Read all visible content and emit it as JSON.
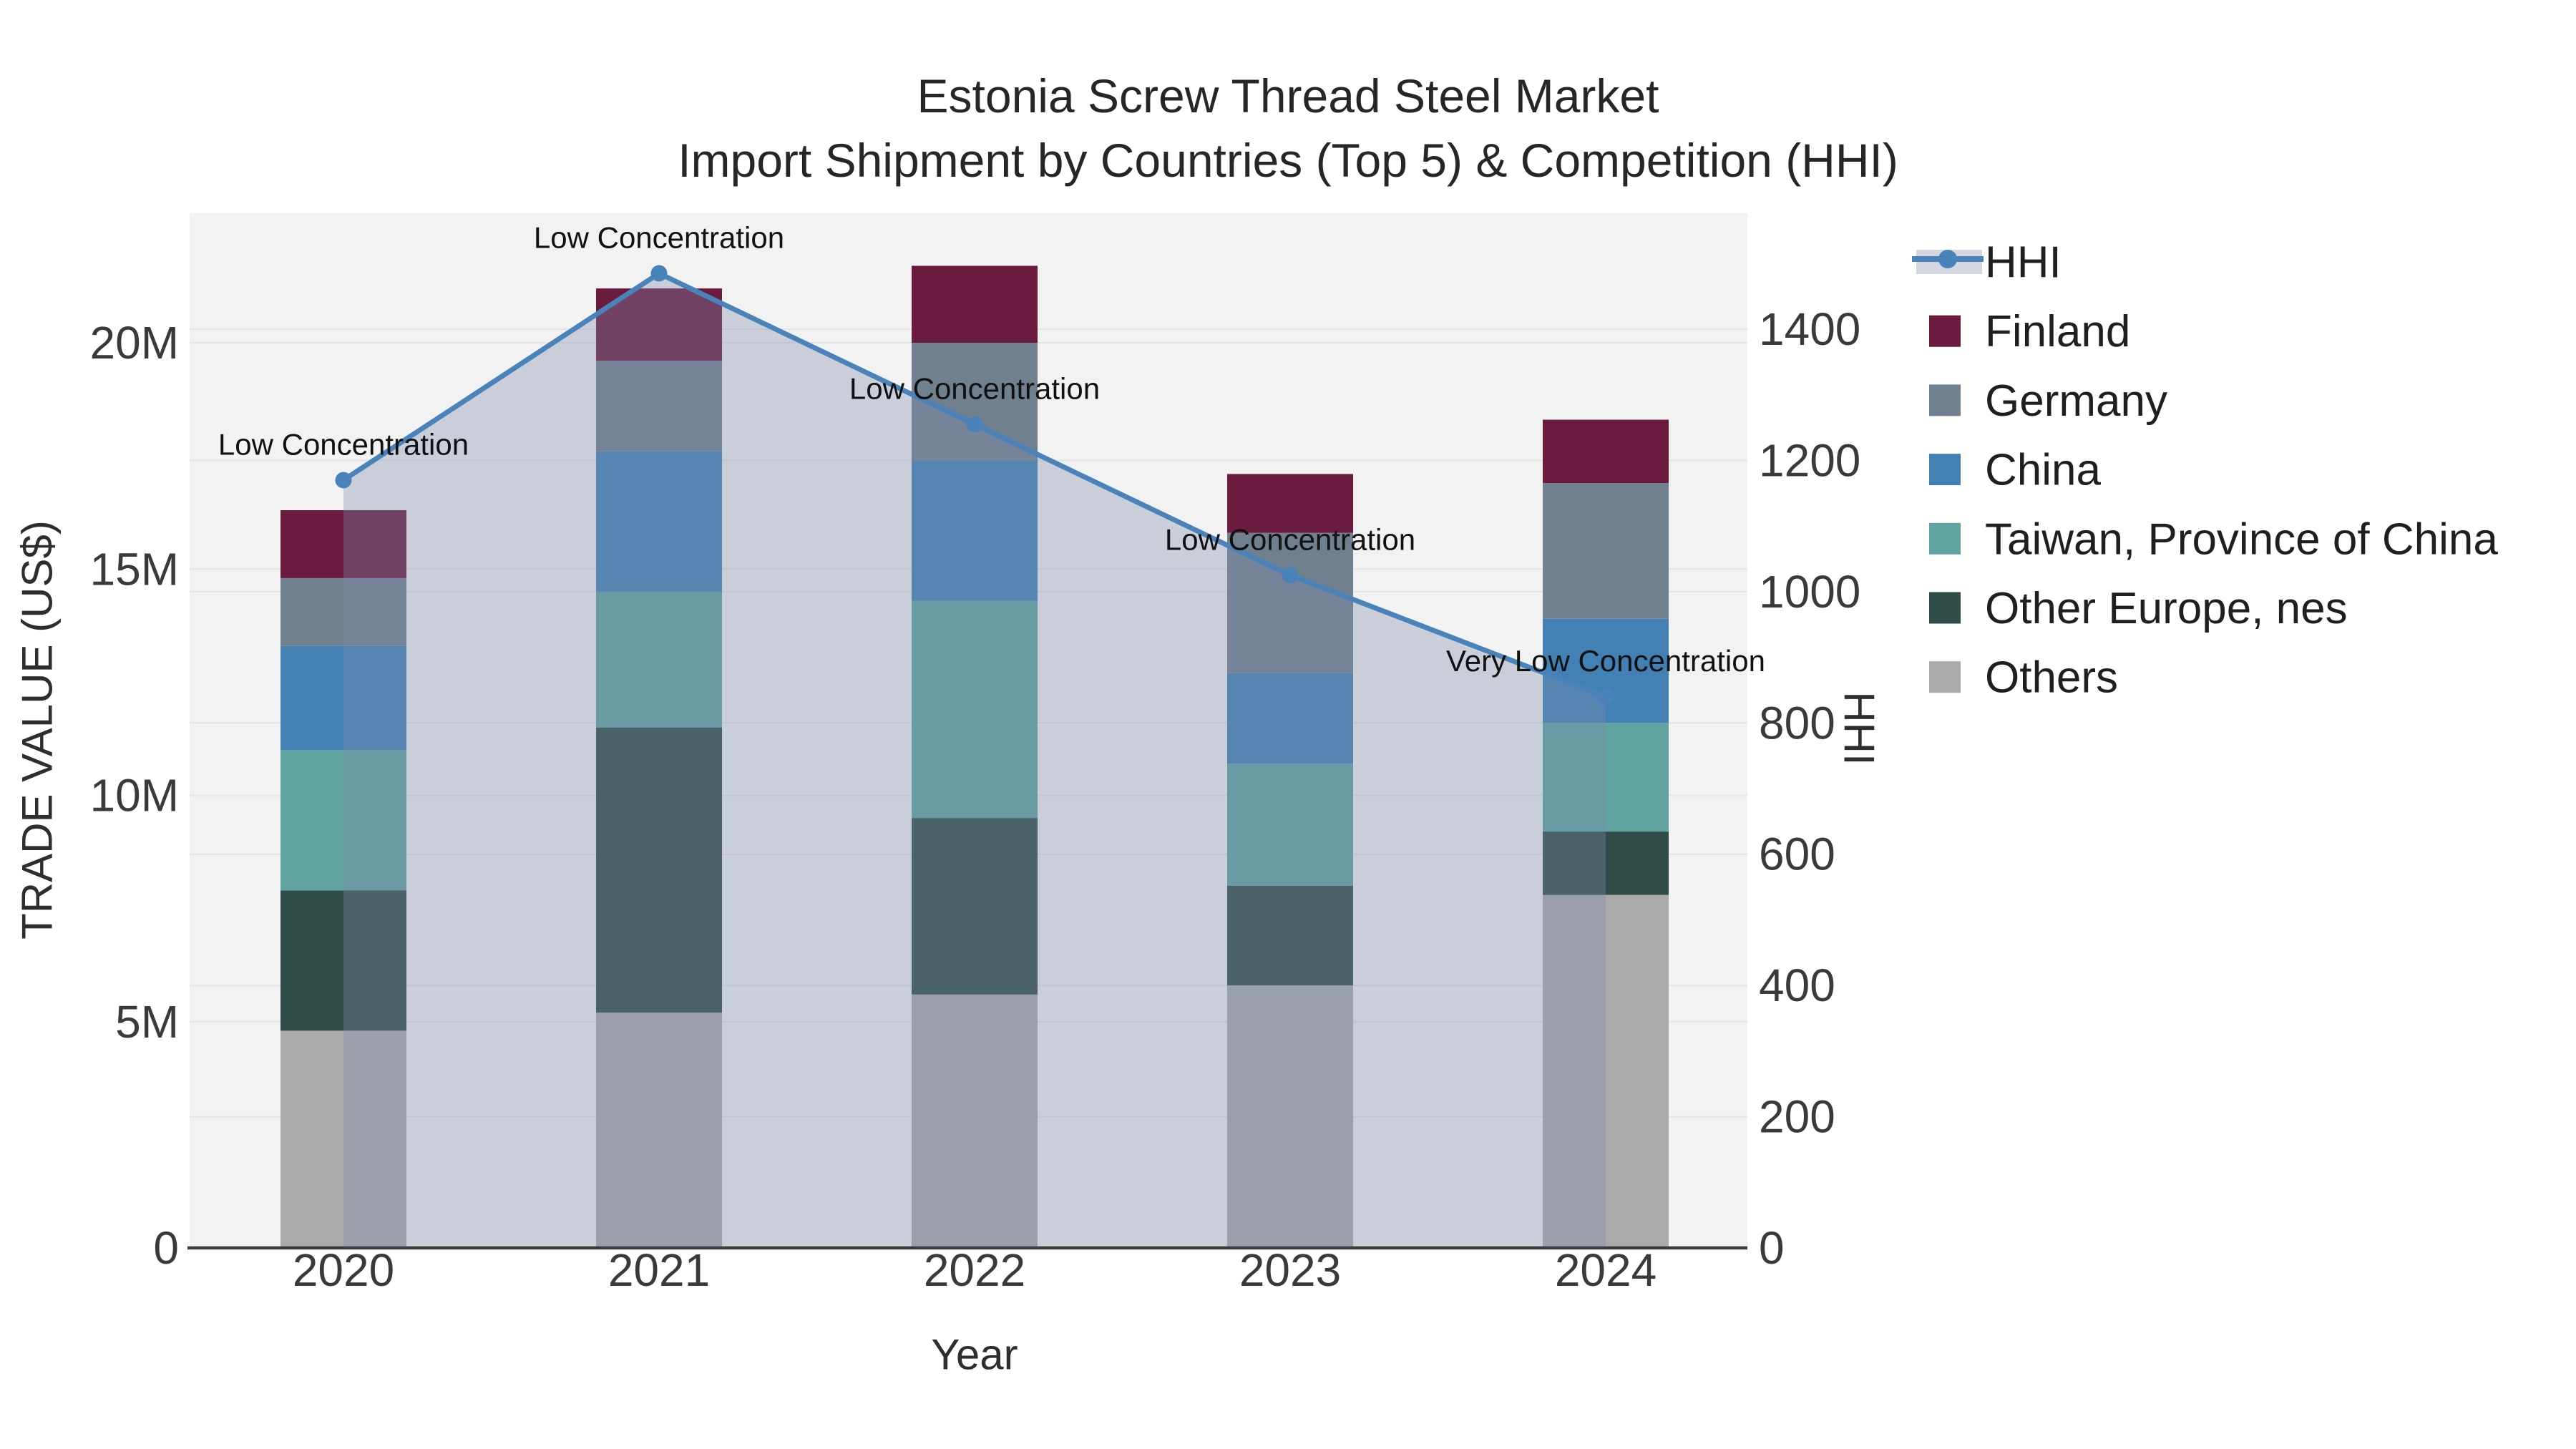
{
  "title": {
    "line1": "Estonia Screw Thread Steel Market",
    "line2": "Import Shipment by Countries (Top 5) & Competition (HHI)"
  },
  "axes": {
    "x": {
      "title": "Year",
      "categories": [
        "2020",
        "2021",
        "2022",
        "2023",
        "2024"
      ]
    },
    "y_left": {
      "title": "TRADE VALUE (US$)",
      "tick_labels": [
        "0",
        "5M",
        "10M",
        "15M",
        "20M"
      ],
      "tick_values_millions": [
        0,
        5,
        10,
        15,
        20
      ],
      "max_millions": 22.86
    },
    "y_right": {
      "title": "HHI",
      "tick_labels": [
        "0",
        "200",
        "400",
        "600",
        "800",
        "1000",
        "1200",
        "1400"
      ],
      "tick_values": [
        0,
        200,
        400,
        600,
        800,
        1000,
        1200,
        1400
      ],
      "max": 1576
    }
  },
  "chart_data": {
    "type": "bar",
    "subtype": "stacked-bars-with-hhi-line-area",
    "title": "Estonia Screw Thread Steel Market Import Shipment by Countries (Top 5) & Competition (HHI)",
    "xlabel": "Year",
    "ylabel": "TRADE VALUE (US$)",
    "ylabel_right": "HHI",
    "unit": "million US$",
    "grid": true,
    "legend_position": "right",
    "categories": [
      "2020",
      "2021",
      "2022",
      "2023",
      "2024"
    ],
    "series": [
      {
        "name": "Others",
        "color": "#AAAAAA",
        "values": [
          4.8,
          5.2,
          5.6,
          5.8,
          7.8
        ]
      },
      {
        "name": "Other Europe, nes",
        "color": "#2F4C49",
        "values": [
          3.1,
          6.3,
          3.9,
          2.2,
          1.4
        ]
      },
      {
        "name": "Taiwan, Province of China",
        "color": "#60A3A1",
        "values": [
          3.1,
          3.0,
          4.8,
          2.7,
          2.4
        ]
      },
      {
        "name": "China",
        "color": "#4381B5",
        "values": [
          2.3,
          3.1,
          3.1,
          2.0,
          2.3
        ]
      },
      {
        "name": "Germany",
        "color": "#71808F",
        "values": [
          1.5,
          2.0,
          2.6,
          3.1,
          3.0
        ]
      },
      {
        "name": "Finland",
        "color": "#6A1B3E",
        "values": [
          1.5,
          1.6,
          1.7,
          1.3,
          1.4
        ]
      }
    ],
    "bar_totals_millions": [
      16.3,
      21.2,
      21.7,
      17.1,
      18.3
    ],
    "hhi_line": {
      "name": "HHI",
      "values": [
        1170,
        1485,
        1255,
        1025,
        840
      ],
      "line_color": "#4A82BA",
      "area_fill": "rgba(125,140,170,0.35)"
    },
    "annotations": [
      {
        "category": "2020",
        "text": "Low Concentration"
      },
      {
        "category": "2021",
        "text": "Low Concentration"
      },
      {
        "category": "2022",
        "text": "Low Concentration"
      },
      {
        "category": "2023",
        "text": "Low Concentration"
      },
      {
        "category": "2024",
        "text": "Very Low Concentration"
      }
    ]
  },
  "legend": {
    "items": [
      {
        "label": "HHI",
        "type": "line"
      },
      {
        "label": "Finland",
        "type": "swatch"
      },
      {
        "label": "Germany",
        "type": "swatch"
      },
      {
        "label": "China",
        "type": "swatch"
      },
      {
        "label": "Taiwan, Province of China",
        "type": "swatch"
      },
      {
        "label": "Other Europe, nes",
        "type": "swatch"
      },
      {
        "label": "Others",
        "type": "swatch"
      }
    ]
  },
  "colors": {
    "figure_bg": "#FFFFFF",
    "plot_bg": "#F2F2F2",
    "grid": "#E4E4E6",
    "axis_line": "#3D3D3D",
    "tick_text": "#3A3A3A",
    "title_text": "#262626"
  }
}
